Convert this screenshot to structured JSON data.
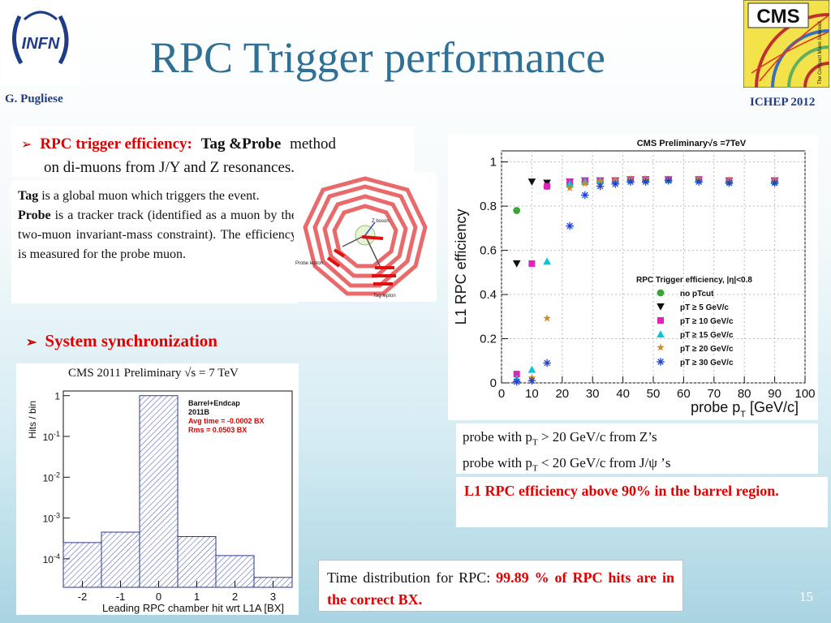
{
  "header": {
    "title": "RPC Trigger performance",
    "author": "G. Pugliese",
    "conference": "ICHEP 2012",
    "infn_logo_text": "INFN",
    "cms_logo_text": "CMS",
    "cms_logo_sub": "The Compact Muon Solenoid"
  },
  "section1": {
    "bullet": "➢",
    "lead": "RPC trigger efficiency:",
    "tagprobe": "Tag &Probe",
    "method": "method",
    "line2": "on di-muons from J/Y and Z resonances.",
    "tag_word": "Tag",
    "tag_desc": " is a global muon which triggers the event.",
    "probe_word": "Probe",
    "probe_desc": " is a tracker track (identified as a muon by the two-muon invariant-mass constraint). The efficiency is measured for the probe muon."
  },
  "event_display": {
    "z_label": "Z boson",
    "probe_label": "Probe lepton",
    "tag_label": "Tag lepton"
  },
  "section2": {
    "bullet": "➢",
    "label": "System synchronization"
  },
  "hist_header": "CMS 2011 Preliminary  √s = 7 TeV",
  "efficiency_notes": {
    "line1_pre": "probe with p",
    "line1_sub": "T",
    "line1_post": " > 20 GeV/c from Z’s",
    "line2_pre": "probe with p",
    "line2_sub": "T",
    "line2_post": " < 20 GeV/c from J/ψ ’s",
    "conclusion": "L1 RPC efficiency above 90% in the barrel region."
  },
  "timing_note": {
    "pre": "Time distribution for RPC: ",
    "highlight": "99.89 % of RPC hits are in the correct BX."
  },
  "page_number": "15",
  "chart_data": [
    {
      "type": "scatter",
      "title": "CMS Preliminary√s =7TeV",
      "xlabel": "probe p_T [GeV/c]",
      "ylabel": "L1 RPC efficiency",
      "xlim": [
        0,
        100
      ],
      "ylim": [
        0,
        1.05
      ],
      "x_ticks": [
        0,
        10,
        20,
        30,
        40,
        50,
        60,
        70,
        80,
        90,
        100
      ],
      "y_ticks": [
        0,
        0.2,
        0.4,
        0.6,
        0.8,
        1
      ],
      "legend_title": "RPC Trigger efficiency, |η|<0.8",
      "legend_position": "lower-right",
      "series": [
        {
          "name": "no pTcut",
          "marker": "circle",
          "color": "#3aa635",
          "x": [
            5,
            15,
            22.5,
            27.5,
            32.5,
            37.5,
            42.5,
            47.5,
            55,
            65,
            75,
            90
          ],
          "y": [
            0.78,
            0.89,
            0.9,
            0.91,
            0.91,
            0.91,
            0.92,
            0.92,
            0.92,
            0.92,
            0.91,
            0.91
          ]
        },
        {
          "name": "pT ≥ 5 GeV/c",
          "marker": "triangle-down",
          "color": "#111111",
          "x": [
            5,
            10,
            15,
            22.5,
            27.5,
            32.5,
            37.5,
            42.5,
            47.5,
            55,
            65,
            75,
            90
          ],
          "y": [
            0.54,
            0.91,
            0.905,
            0.91,
            0.915,
            0.915,
            0.915,
            0.92,
            0.92,
            0.92,
            0.92,
            0.915,
            0.915
          ]
        },
        {
          "name": "pT ≥ 10 GeV/c",
          "marker": "square",
          "color": "#e020c0",
          "x": [
            5,
            10,
            15,
            22.5,
            27.5,
            32.5,
            37.5,
            42.5,
            47.5,
            55,
            65,
            75,
            90
          ],
          "y": [
            0.04,
            0.54,
            0.89,
            0.91,
            0.915,
            0.915,
            0.915,
            0.92,
            0.92,
            0.92,
            0.92,
            0.915,
            0.915
          ]
        },
        {
          "name": "pT ≥ 15 GeV/c",
          "marker": "triangle-up",
          "color": "#00c8d8",
          "x": [
            5,
            10,
            15,
            22.5,
            27.5,
            32.5,
            37.5,
            42.5,
            47.5,
            55,
            65,
            75,
            90
          ],
          "y": [
            0.02,
            0.06,
            0.55,
            0.9,
            0.91,
            0.915,
            0.915,
            0.92,
            0.92,
            0.92,
            0.92,
            0.915,
            0.915
          ]
        },
        {
          "name": "pT ≥ 20 GeV/c",
          "marker": "star",
          "color": "#d08a20",
          "x": [
            5,
            10,
            15,
            22.5,
            27.5,
            32.5,
            37.5,
            42.5,
            47.5,
            55,
            65,
            75,
            90
          ],
          "y": [
            0.01,
            0.02,
            0.29,
            0.88,
            0.9,
            0.91,
            0.915,
            0.92,
            0.92,
            0.92,
            0.92,
            0.915,
            0.915
          ]
        },
        {
          "name": "pT ≥ 30 GeV/c",
          "marker": "asterisk",
          "color": "#2040d0",
          "x": [
            5,
            10,
            15,
            22.5,
            27.5,
            32.5,
            37.5,
            42.5,
            47.5,
            55,
            65,
            75,
            90
          ],
          "y": [
            0.005,
            0.01,
            0.09,
            0.71,
            0.85,
            0.89,
            0.9,
            0.91,
            0.91,
            0.915,
            0.91,
            0.905,
            0.905
          ]
        }
      ]
    },
    {
      "type": "bar",
      "title": "CMS 2011 Preliminary  √s = 7 TeV",
      "xlabel": "Leading RPC chamber hit wrt L1A [BX]",
      "ylabel": "Hits / bin",
      "yscale": "log",
      "ylim": [
        2e-05,
        1.3
      ],
      "xlim": [
        -2.5,
        3.5
      ],
      "x_ticks": [
        -2,
        -1,
        0,
        1,
        2,
        3
      ],
      "y_ticks": [
        "1",
        "10-1",
        "10-2",
        "10-3",
        "10-4"
      ],
      "bins": [
        [
          -2.5,
          -1.5
        ],
        [
          -1.5,
          -0.5
        ],
        [
          -0.5,
          0.5
        ],
        [
          0.5,
          1.5
        ],
        [
          1.5,
          2.5
        ],
        [
          2.5,
          3.5
        ]
      ],
      "values": [
        0.00025,
        0.00045,
        1.0,
        0.00035,
        0.00012,
        3.5e-05
      ],
      "legend_title": "Barrel+Endcap",
      "legend_lines": [
        "2011B",
        "Avg time = -0.0002 BX",
        "Rms = 0.0503 BX"
      ],
      "legend_position": "top-right"
    }
  ]
}
